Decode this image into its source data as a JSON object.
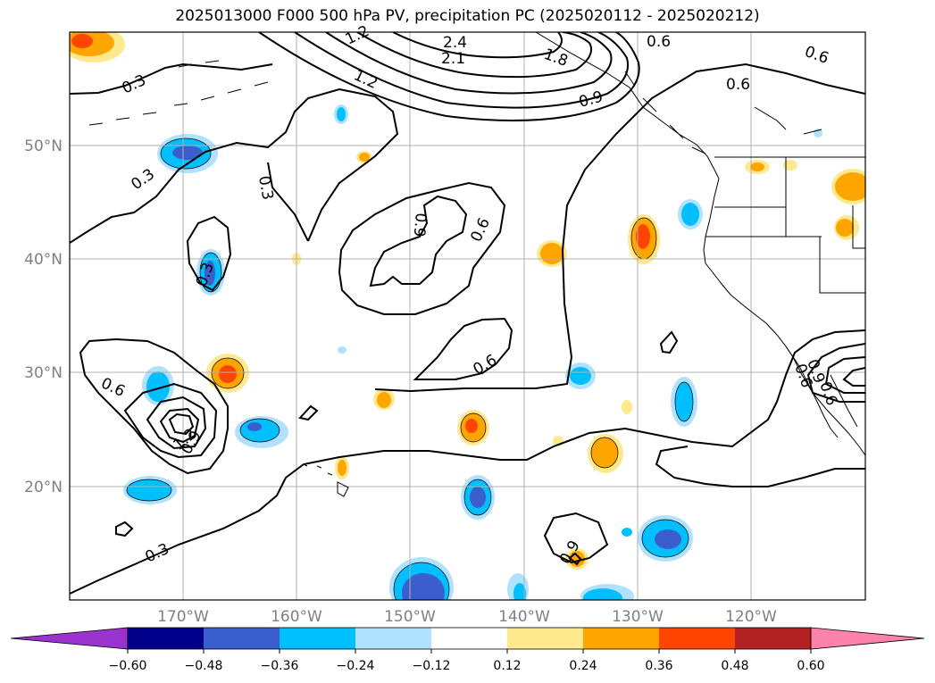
{
  "title": "2025013000 F000 500 hPa PV, precipitation PC (2025020112 - 2025020212)",
  "map": {
    "lon_labels": [
      "170°W",
      "160°W",
      "150°W",
      "140°W",
      "130°W",
      "120°W"
    ],
    "lat_labels": [
      "50°N",
      "40°N",
      "30°N",
      "20°N"
    ],
    "axis_label_color": "#808080",
    "contour_labels": [
      {
        "text": "0.3"
      },
      {
        "text": "0.3"
      },
      {
        "text": "0.3"
      },
      {
        "text": "0.3"
      },
      {
        "text": "0.3"
      },
      {
        "text": "0.6"
      },
      {
        "text": "0.6"
      },
      {
        "text": "0.6"
      },
      {
        "text": "0.6"
      },
      {
        "text": "0.6"
      },
      {
        "text": "0.6"
      },
      {
        "text": "0.6"
      },
      {
        "text": "0.9"
      },
      {
        "text": "0.9"
      },
      {
        "text": "0.9"
      },
      {
        "text": "0.9"
      },
      {
        "text": "1.2"
      },
      {
        "text": "1.2"
      },
      {
        "text": "1.2"
      },
      {
        "text": "1.8"
      },
      {
        "text": "2.1"
      },
      {
        "text": "2.4"
      },
      {
        "text": "0.6"
      },
      {
        "text": "0.9"
      }
    ]
  },
  "colorbar": {
    "colors": [
      "#9a32cd",
      "#00008b",
      "#3a5fcd",
      "#00bfff",
      "#b0e2ff",
      "#ffffff",
      "#ffe98f",
      "#ffa500",
      "#ff4500",
      "#b22222",
      "#ff82ab"
    ],
    "tick_labels": [
      "−0.60",
      "−0.48",
      "−0.36",
      "−0.24",
      "−0.12",
      "0.12",
      "0.24",
      "0.36",
      "0.48",
      "0.60"
    ]
  }
}
